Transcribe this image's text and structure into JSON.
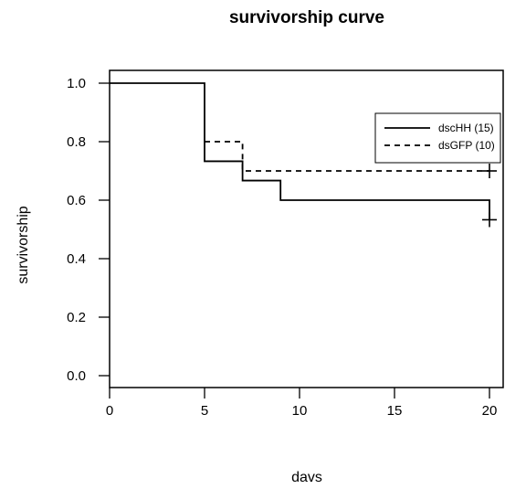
{
  "chart_data": {
    "type": "line",
    "subtype": "step",
    "title": "survivorship curve",
    "xlabel": "davs",
    "ylabel": "survivorship",
    "xlim": [
      0,
      20
    ],
    "ylim": [
      0,
      1
    ],
    "x_ticks": [
      "0",
      "5",
      "10",
      "15",
      "20"
    ],
    "y_ticks": [
      "0.0",
      "0.2",
      "0.4",
      "0.6",
      "0.8",
      "1.0"
    ],
    "grid": false,
    "legend_position": "top-right",
    "series": [
      {
        "name": "dscHH (15)",
        "line_style": "solid",
        "color": "#000000",
        "steps": [
          {
            "x": 0,
            "y": 1.0
          },
          {
            "x": 5,
            "y": 0.733
          },
          {
            "x": 7,
            "y": 0.667
          },
          {
            "x": 9,
            "y": 0.6
          },
          {
            "x": 20,
            "y": 0.533
          }
        ],
        "censored": [
          {
            "x": 20,
            "y": 0.533
          }
        ]
      },
      {
        "name": "dsGFP (10)",
        "line_style": "dashed",
        "color": "#000000",
        "steps": [
          {
            "x": 5,
            "y": 0.8
          },
          {
            "x": 7,
            "y": 0.7
          },
          {
            "x": 20,
            "y": 0.7
          }
        ],
        "censored": [
          {
            "x": 20,
            "y": 0.7
          }
        ]
      }
    ]
  }
}
